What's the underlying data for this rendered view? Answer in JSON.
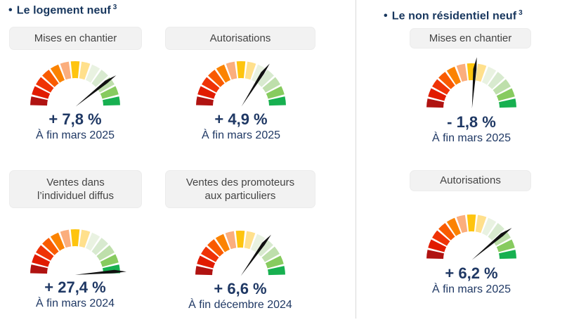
{
  "sections": [
    {
      "title": "Le logement neuf",
      "superscript": "3",
      "panels": [
        {
          "label_lines": [
            "Mises en chantier"
          ],
          "value": "+ 7,8 %",
          "date": "À fin mars 2025",
          "needle_angle_deg": 37
        },
        {
          "label_lines": [
            "Autorisations"
          ],
          "value": "+ 4,9 %",
          "date": "À fin mars 2025",
          "needle_angle_deg": 56
        },
        {
          "label_lines": [
            "Ventes dans",
            "l’individuel diffus"
          ],
          "value": "+ 27,4 %",
          "date": "À fin mars 2024",
          "needle_angle_deg": 3
        },
        {
          "label_lines": [
            "Ventes des promoteurs",
            "aux particuliers"
          ],
          "value": "+ 6,6 %",
          "date": "À fin décembre 2024",
          "needle_angle_deg": 53
        }
      ]
    },
    {
      "title": "Le non résidentiel neuf",
      "superscript": "3",
      "panels": [
        {
          "label_lines": [
            "Mises en chantier"
          ],
          "value": "- 1,8 %",
          "date": "À fin mars 2025",
          "needle_angle_deg": 84
        },
        {
          "label_lines": [
            "Autorisations"
          ],
          "value": "+ 6,2 %",
          "date": "À fin mars 2025",
          "needle_angle_deg": 38
        }
      ]
    }
  ],
  "gauge": {
    "segment_colors": [
      "#B01311",
      "#E11B00",
      "#EF3306",
      "#F95B00",
      "#FB8301",
      "#FBAE7D",
      "#FEC40E",
      "#FFE08C",
      "#E9F2E1",
      "#D8EACF",
      "#BEDFAB",
      "#87CB5F",
      "#17B050"
    ],
    "needle_color": "#111111"
  },
  "colors": {
    "title": "#17365D",
    "value_text": "#1F3864",
    "label_text": "#444444",
    "label_background": "#F2F2F2",
    "divider": "#D9D9D9"
  },
  "chart_data": [
    {
      "type": "gauge",
      "group": "Le logement neuf",
      "label": "Mises en chantier",
      "value_pct": 7.8,
      "period": "À fin mars 2025"
    },
    {
      "type": "gauge",
      "group": "Le logement neuf",
      "label": "Autorisations",
      "value_pct": 4.9,
      "period": "À fin mars 2025"
    },
    {
      "type": "gauge",
      "group": "Le logement neuf",
      "label": "Ventes dans l’individuel diffus",
      "value_pct": 27.4,
      "period": "À fin mars 2024"
    },
    {
      "type": "gauge",
      "group": "Le logement neuf",
      "label": "Ventes des promoteurs aux particuliers",
      "value_pct": 6.6,
      "period": "À fin décembre 2024"
    },
    {
      "type": "gauge",
      "group": "Le non résidentiel neuf",
      "label": "Mises en chantier",
      "value_pct": -1.8,
      "period": "À fin mars 2025"
    },
    {
      "type": "gauge",
      "group": "Le non résidentiel neuf",
      "label": "Autorisations",
      "value_pct": 6.2,
      "period": "À fin mars 2025"
    }
  ]
}
